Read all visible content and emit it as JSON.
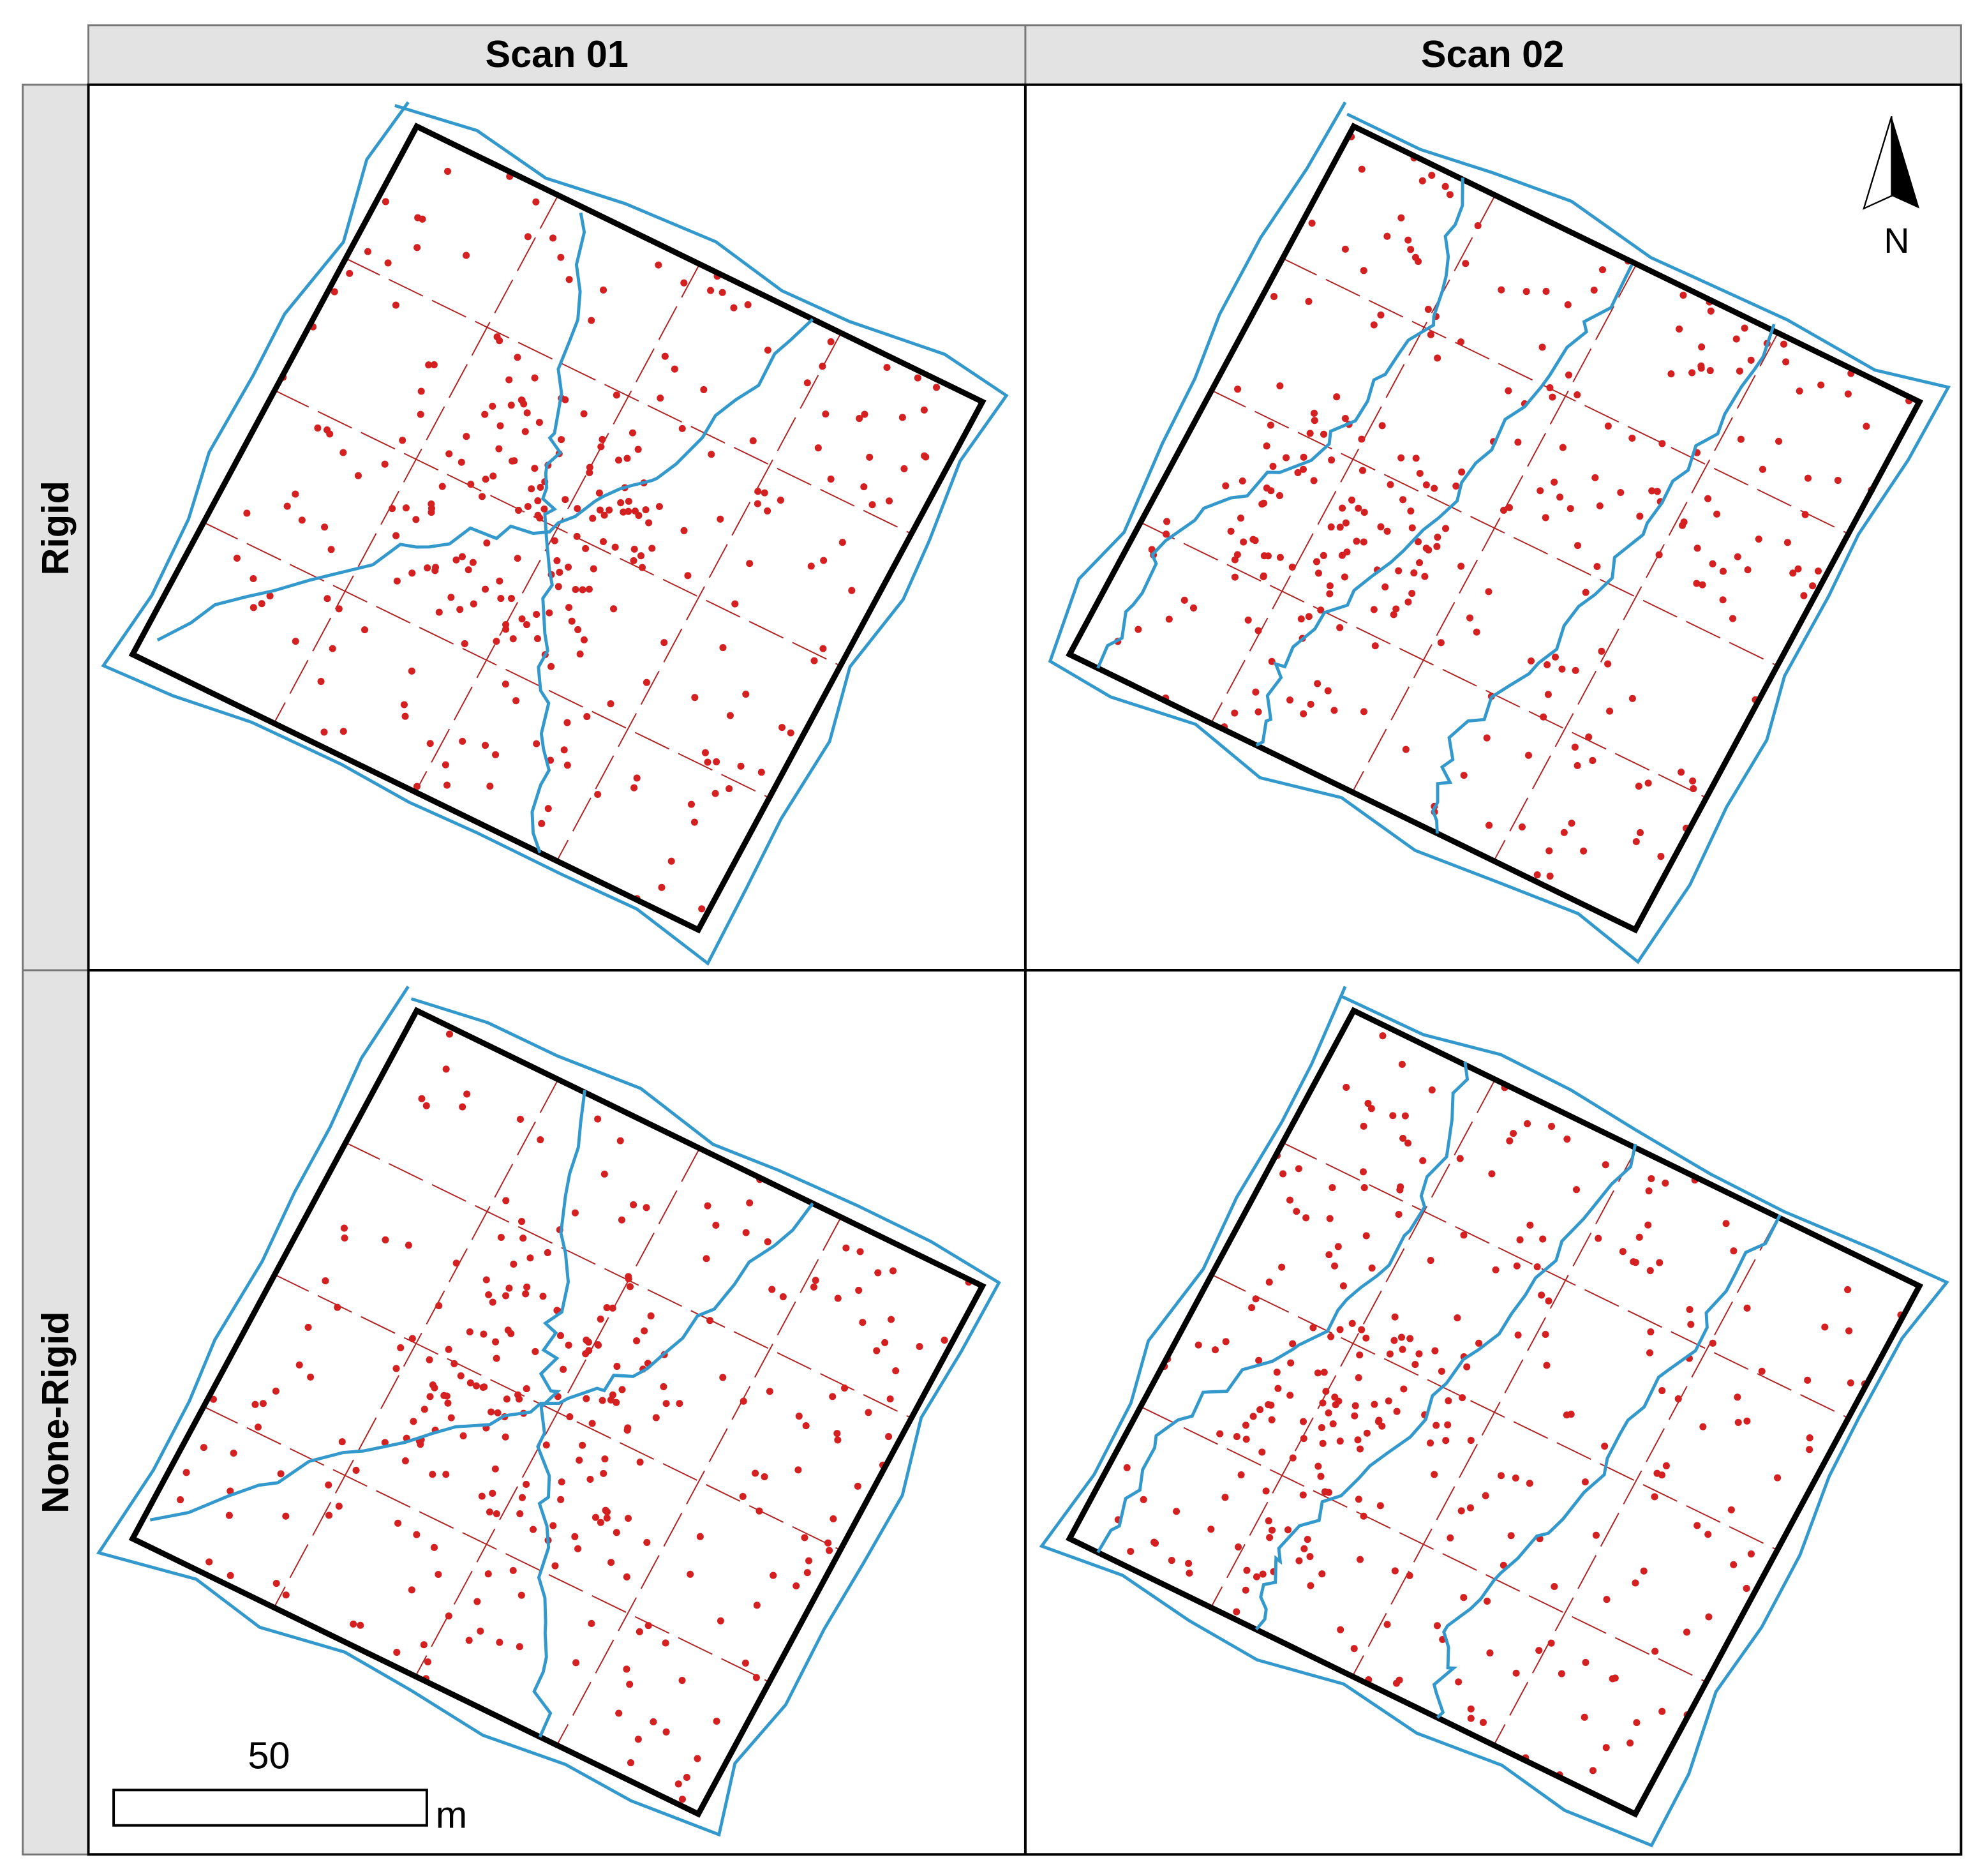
{
  "header": {
    "columns": [
      "Scan 01",
      "Scan 02"
    ]
  },
  "rows": [
    "Rigid",
    "None-Rigid"
  ],
  "scale_bar": {
    "label": "50",
    "unit": "m"
  },
  "north_arrow": {
    "label": "N"
  }
}
